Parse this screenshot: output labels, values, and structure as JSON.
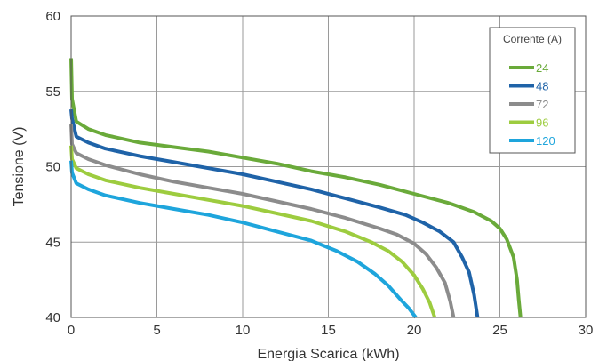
{
  "chart_data": {
    "type": "line",
    "xlabel": "Energia Scarica (kWh)",
    "ylabel": "Tensione (V)",
    "xlim": [
      0,
      30
    ],
    "ylim": [
      40,
      60
    ],
    "x_ticks": [
      "0",
      "5",
      "10",
      "15",
      "20",
      "25",
      "30"
    ],
    "y_ticks": [
      "40",
      "45",
      "50",
      "55",
      "60"
    ],
    "grid": true,
    "legend": {
      "title": "Corrente (A)",
      "position": "top-right"
    },
    "series": [
      {
        "name": "24",
        "color": "#6aaa3a",
        "x": [
          0,
          0.05,
          0.3,
          1,
          2,
          4,
          6,
          8,
          10,
          12,
          14,
          16,
          18,
          20,
          22,
          23.5,
          24.5,
          25,
          25.4,
          25.8,
          26,
          26.1,
          26.2
        ],
        "y": [
          57.2,
          54.5,
          53.0,
          52.5,
          52.1,
          51.6,
          51.3,
          51.0,
          50.6,
          50.2,
          49.7,
          49.3,
          48.8,
          48.2,
          47.6,
          47.0,
          46.4,
          45.9,
          45.2,
          44.0,
          42.5,
          41.2,
          40.0
        ]
      },
      {
        "name": "48",
        "color": "#1f63a8",
        "x": [
          0,
          0.05,
          0.3,
          1,
          2,
          4,
          6,
          8,
          10,
          12,
          14,
          16,
          18,
          19.5,
          20.5,
          21.5,
          22.3,
          22.8,
          23.2,
          23.5,
          23.7
        ],
        "y": [
          53.8,
          53.2,
          52.0,
          51.6,
          51.2,
          50.7,
          50.3,
          49.9,
          49.5,
          49.0,
          48.5,
          47.9,
          47.3,
          46.8,
          46.3,
          45.7,
          45.0,
          44.0,
          43.0,
          41.5,
          40.0
        ]
      },
      {
        "name": "72",
        "color": "#8c8c8c",
        "x": [
          0,
          0.05,
          0.3,
          1,
          2,
          4,
          6,
          8,
          10,
          12,
          14,
          16,
          18,
          19,
          20,
          20.7,
          21.3,
          21.8,
          22.1,
          22.3
        ],
        "y": [
          52.8,
          51.5,
          50.9,
          50.5,
          50.1,
          49.5,
          49.0,
          48.6,
          48.2,
          47.7,
          47.2,
          46.6,
          45.9,
          45.5,
          44.9,
          44.2,
          43.3,
          42.3,
          41.1,
          40.0
        ]
      },
      {
        "name": "96",
        "color": "#9dcc3f",
        "x": [
          0,
          0.05,
          0.3,
          1,
          2,
          4,
          6,
          8,
          10,
          12,
          14,
          16,
          17.5,
          18.5,
          19.3,
          20,
          20.5,
          20.9,
          21.2
        ],
        "y": [
          51.4,
          50.5,
          49.9,
          49.5,
          49.1,
          48.6,
          48.2,
          47.8,
          47.4,
          46.9,
          46.4,
          45.7,
          45.0,
          44.4,
          43.7,
          42.8,
          41.9,
          41.0,
          40.0
        ]
      },
      {
        "name": "120",
        "color": "#1ea5dc",
        "x": [
          0,
          0.05,
          0.3,
          1,
          2,
          4,
          6,
          8,
          10,
          12,
          14,
          15.5,
          16.7,
          17.7,
          18.5,
          19.2,
          19.7,
          20.1
        ],
        "y": [
          50.4,
          49.6,
          48.9,
          48.5,
          48.1,
          47.6,
          47.2,
          46.8,
          46.3,
          45.7,
          45.1,
          44.4,
          43.7,
          42.9,
          42.1,
          41.2,
          40.6,
          40.0
        ]
      }
    ]
  }
}
